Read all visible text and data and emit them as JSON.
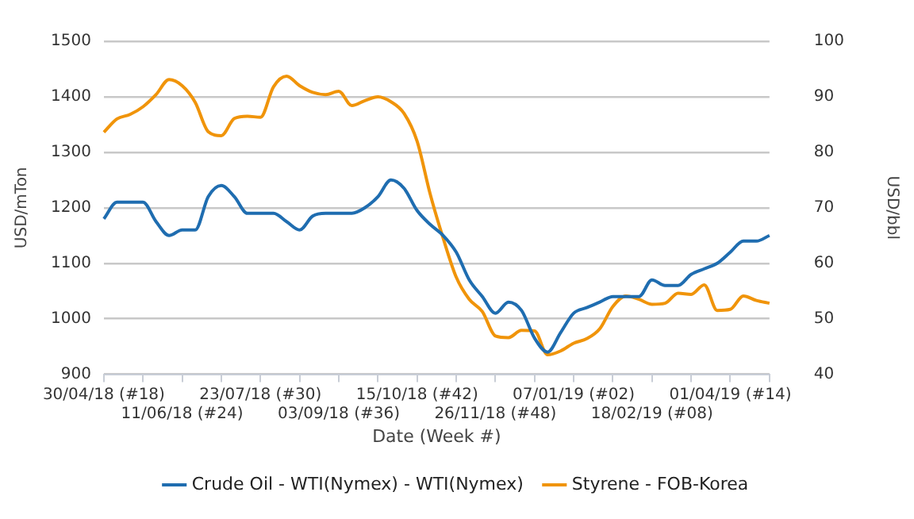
{
  "chart_data": {
    "type": "line",
    "xlabel": "Date (Week #)",
    "ylabel": "USD/mTon",
    "y2label": "USD/bbl",
    "categories": [
      "30/04/18 (#18)",
      null,
      null,
      null,
      null,
      null,
      "11/06/18 (#24)",
      null,
      null,
      null,
      null,
      null,
      "23/07/18 (#30)",
      null,
      null,
      null,
      null,
      null,
      "03/09/18 (#36)",
      null,
      null,
      null,
      null,
      null,
      "15/10/18 (#42)",
      null,
      null,
      null,
      null,
      null,
      "26/11/18 (#48)",
      null,
      null,
      null,
      null,
      null,
      "07/01/19 (#02)",
      null,
      null,
      null,
      null,
      null,
      "18/02/19 (#08)",
      null,
      null,
      null,
      null,
      null,
      "01/04/19 (#14)",
      null,
      null,
      null
    ],
    "series": [
      {
        "name": "Crude Oil - WTI(Nymex) - WTI(Nymex)",
        "color": "#1f6db0",
        "axis": "y2",
        "values": [
          68,
          71,
          71,
          71,
          67.5,
          65,
          66,
          66,
          72,
          74,
          72,
          69,
          69,
          69,
          67.5,
          66,
          68.5,
          69,
          69,
          69,
          70,
          72,
          75,
          73.5,
          69.5,
          67,
          65,
          62,
          57,
          54,
          51,
          53,
          51.5,
          46.5,
          44,
          47.5,
          51,
          52,
          53,
          54,
          54,
          54,
          57,
          56,
          56,
          58,
          59,
          60,
          62,
          64,
          64,
          65
        ]
      },
      {
        "name": "Styrene - FOB-Korea",
        "color": "#f0940a",
        "values": [
          1336,
          1360,
          1368,
          1382,
          1404,
          1431,
          1420,
          1390,
          1337,
          1330,
          1361,
          1365,
          1363,
          1418,
          1437,
          1420,
          1408,
          1404,
          1410,
          1384,
          1393,
          1400,
          1391,
          1370,
          1320,
          1225,
          1145,
          1075,
          1035,
          1013,
          969,
          966,
          979,
          978,
          935,
          942,
          956,
          964,
          982,
          1022,
          1041,
          1035,
          1026,
          1028,
          1046,
          1044,
          1061,
          1015,
          1017,
          1041,
          1033,
          1028
        ]
      }
    ],
    "ylim": [
      900,
      1500
    ],
    "yticks": [
      900,
      1000,
      1100,
      1200,
      1300,
      1400,
      1500
    ],
    "y2lim": [
      40,
      100
    ],
    "y2ticks": [
      40,
      50,
      60,
      70,
      80,
      90,
      100
    ],
    "grid": "y",
    "legend": "bottom",
    "marker": "none",
    "line_style": "solid"
  }
}
